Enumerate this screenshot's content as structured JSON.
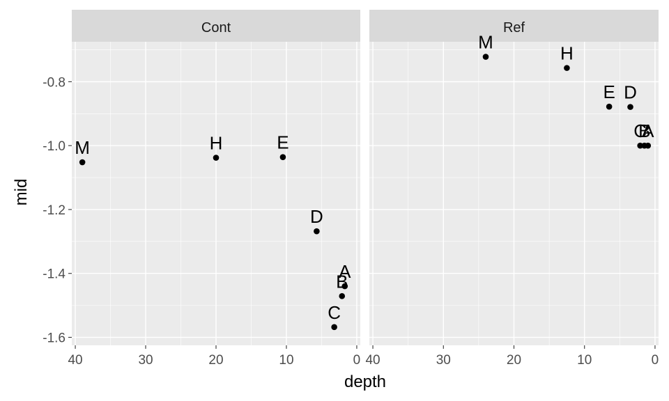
{
  "chart_data": {
    "type": "scatter",
    "xlabel": "depth",
    "ylabel": "mid",
    "x_reversed": true,
    "xlim": [
      40.5,
      -0.5
    ],
    "ylim": [
      -1.625,
      -0.675
    ],
    "x_ticks": [
      40,
      30,
      20,
      10,
      0
    ],
    "y_ticks": [
      -0.8,
      -1.0,
      -1.2,
      -1.4,
      -1.6
    ],
    "y_tick_labels": [
      "-0.8",
      "-1.0",
      "-1.2",
      "-1.4",
      "-1.6"
    ],
    "grid": true,
    "panel_background": "#EBEBEB",
    "strip_background": "#D9D9D9",
    "point_color": "#000000",
    "facets": [
      {
        "strip": "Cont",
        "points": [
          {
            "label": "M",
            "x": 39,
            "y": -1.052
          },
          {
            "label": "H",
            "x": 20,
            "y": -1.038
          },
          {
            "label": "E",
            "x": 10.5,
            "y": -1.036
          },
          {
            "label": "D",
            "x": 5.7,
            "y": -1.268
          },
          {
            "label": "A",
            "x": 1.7,
            "y": -1.44
          },
          {
            "label": "B",
            "x": 2.1,
            "y": -1.471
          },
          {
            "label": "C",
            "x": 3.2,
            "y": -1.568
          }
        ]
      },
      {
        "strip": "Ref",
        "points": [
          {
            "label": "M",
            "x": 24,
            "y": -0.722
          },
          {
            "label": "H",
            "x": 12.5,
            "y": -0.757
          },
          {
            "label": "E",
            "x": 6.5,
            "y": -0.878
          },
          {
            "label": "D",
            "x": 3.5,
            "y": -0.879
          },
          {
            "label": "C",
            "x": 2.1,
            "y": -1.0
          },
          {
            "label": "B",
            "x": 1.5,
            "y": -1.0
          },
          {
            "label": "A",
            "x": 1.0,
            "y": -1.0
          }
        ]
      }
    ]
  }
}
